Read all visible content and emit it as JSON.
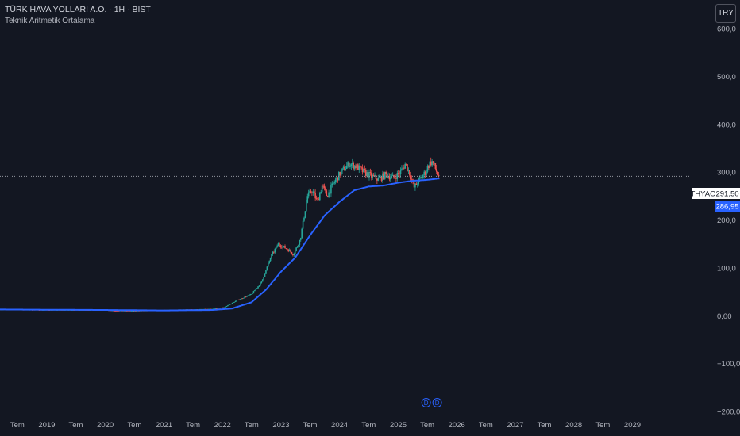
{
  "header": {
    "title": "TÜRK HAVA YOLLARI A.O. · 1H · BIST",
    "indicator": "Teknik Aritmetik Ortalama"
  },
  "currency_button": "TRY",
  "colors": {
    "background": "#131722",
    "up": "#26a69a",
    "down": "#ef5350",
    "ma": "#2962ff",
    "text": "#d1d4dc",
    "axis_text": "#b2b5be"
  },
  "chart_data": {
    "type": "candlestick",
    "symbol": "THYAO",
    "last_price": 291.5,
    "last_price_label": "291,50",
    "ma_value": 286.95,
    "ma_value_label": "286,95",
    "ylim": [
      -215,
      660
    ],
    "y_ticks": [
      600,
      500,
      400,
      300,
      200,
      100,
      0,
      -100,
      -200
    ],
    "y_tick_labels": [
      "600,0",
      "500,0",
      "400,0",
      "300,0",
      "200,0",
      "100,0",
      "0,00",
      "−100,0",
      "−200,0"
    ],
    "xlim": [
      "2018-03-15",
      "2029-12-31"
    ],
    "x_ticks": [
      {
        "date": "2018-07-01",
        "label": "Tem"
      },
      {
        "date": "2019-01-01",
        "label": "2019"
      },
      {
        "date": "2019-07-01",
        "label": "Tem"
      },
      {
        "date": "2020-01-01",
        "label": "2020"
      },
      {
        "date": "2020-07-01",
        "label": "Tem"
      },
      {
        "date": "2021-01-01",
        "label": "2021"
      },
      {
        "date": "2021-07-01",
        "label": "Tem"
      },
      {
        "date": "2022-01-01",
        "label": "2022"
      },
      {
        "date": "2022-07-01",
        "label": "Tem"
      },
      {
        "date": "2023-01-01",
        "label": "2023"
      },
      {
        "date": "2023-07-01",
        "label": "Tem"
      },
      {
        "date": "2024-01-01",
        "label": "2024"
      },
      {
        "date": "2024-07-01",
        "label": "Tem"
      },
      {
        "date": "2025-01-01",
        "label": "2025"
      },
      {
        "date": "2025-07-01",
        "label": "Tem"
      },
      {
        "date": "2026-01-01",
        "label": "2026"
      },
      {
        "date": "2026-07-01",
        "label": "Tem"
      },
      {
        "date": "2027-01-01",
        "label": "2027"
      },
      {
        "date": "2027-07-01",
        "label": "Tem"
      },
      {
        "date": "2028-01-01",
        "label": "2028"
      },
      {
        "date": "2028-07-01",
        "label": "Tem"
      },
      {
        "date": "2029-01-01",
        "label": "2029"
      }
    ],
    "price_anchors": [
      [
        "2018-03-15",
        13
      ],
      [
        "2019-01-01",
        12
      ],
      [
        "2020-01-01",
        12
      ],
      [
        "2020-04-01",
        9
      ],
      [
        "2021-01-01",
        12
      ],
      [
        "2021-11-01",
        14
      ],
      [
        "2022-01-15",
        18
      ],
      [
        "2022-04-01",
        32
      ],
      [
        "2022-07-01",
        45
      ],
      [
        "2022-09-01",
        70
      ],
      [
        "2022-11-01",
        125
      ],
      [
        "2022-12-15",
        150
      ],
      [
        "2023-02-15",
        138
      ],
      [
        "2023-03-20",
        128
      ],
      [
        "2023-05-01",
        160
      ],
      [
        "2023-06-15",
        250
      ],
      [
        "2023-07-15",
        262
      ],
      [
        "2023-08-15",
        238
      ],
      [
        "2023-09-15",
        272
      ],
      [
        "2023-10-15",
        250
      ],
      [
        "2023-12-01",
        280
      ],
      [
        "2024-01-10",
        300
      ],
      [
        "2024-03-01",
        318
      ],
      [
        "2024-04-15",
        312
      ],
      [
        "2024-06-01",
        300
      ],
      [
        "2024-07-15",
        292
      ],
      [
        "2024-09-01",
        285
      ],
      [
        "2024-10-15",
        295
      ],
      [
        "2024-12-01",
        288
      ],
      [
        "2025-01-15",
        300
      ],
      [
        "2025-02-15",
        318
      ],
      [
        "2025-03-20",
        292
      ],
      [
        "2025-04-10",
        268
      ],
      [
        "2025-05-15",
        285
      ],
      [
        "2025-06-20",
        300
      ],
      [
        "2025-07-15",
        318
      ],
      [
        "2025-08-01",
        322
      ],
      [
        "2025-08-20",
        308
      ],
      [
        "2025-09-05",
        295
      ],
      [
        "2025-09-15",
        291.5
      ]
    ],
    "ma_anchors": [
      [
        "2018-03-15",
        13
      ],
      [
        "2020-01-01",
        12
      ],
      [
        "2021-01-01",
        11
      ],
      [
        "2021-11-01",
        12
      ],
      [
        "2022-03-01",
        15
      ],
      [
        "2022-07-01",
        28
      ],
      [
        "2022-10-01",
        55
      ],
      [
        "2023-01-01",
        92
      ],
      [
        "2023-04-01",
        122
      ],
      [
        "2023-07-01",
        168
      ],
      [
        "2023-10-01",
        210
      ],
      [
        "2024-01-01",
        238
      ],
      [
        "2024-04-01",
        262
      ],
      [
        "2024-07-01",
        270
      ],
      [
        "2024-10-01",
        272
      ],
      [
        "2025-01-01",
        278
      ],
      [
        "2025-04-01",
        282
      ],
      [
        "2025-07-01",
        284
      ],
      [
        "2025-09-15",
        286.95
      ]
    ],
    "event_markers": [
      {
        "date": "2025-06-24",
        "label": "D"
      },
      {
        "date": "2025-09-01",
        "label": "D"
      }
    ]
  }
}
